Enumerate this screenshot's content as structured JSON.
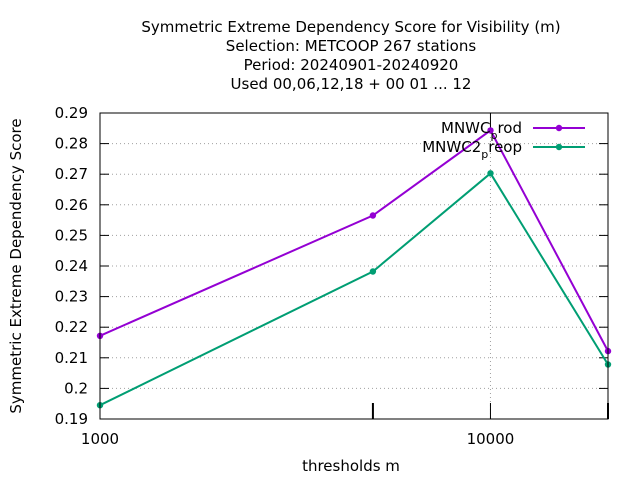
{
  "chart_data": {
    "type": "line",
    "title_lines": [
      "Symmetric Extreme Dependency Score  for Visibility (m)",
      "Selection: METCOOP    267 stations",
      "Period: 20240901-20240920",
      "Used  00,06,12,18 + 00 01 ... 12"
    ],
    "xlabel": "thresholds m",
    "ylabel": "Symmetric Extreme Dependency Score",
    "x_scale": "log",
    "xlim": [
      1000,
      20000
    ],
    "ylim": [
      0.19,
      0.29
    ],
    "y_ticks": [
      0.19,
      0.2,
      0.21,
      0.22,
      0.23,
      0.24,
      0.25,
      0.26,
      0.27,
      0.28,
      0.29
    ],
    "y_tick_labels": [
      "0.19",
      "0.2",
      "0.21",
      "0.22",
      "0.23",
      "0.24",
      "0.25",
      "0.26",
      "0.27",
      "0.28",
      "0.29"
    ],
    "x_major_ticks": [
      1000,
      10000
    ],
    "x_major_tick_labels": [
      "1000",
      "10000"
    ],
    "x_minor_ticks": [
      5000,
      20000
    ],
    "x": [
      1000,
      5000,
      10000,
      20000
    ],
    "grid": true,
    "legend_placement": "top-right",
    "series": [
      {
        "name": "MNWC_prod",
        "legend_main": "MNWC",
        "legend_sub": "p",
        "legend_tail": "rod",
        "color": "#9400d3",
        "values": [
          0.2172,
          0.2565,
          0.2843,
          0.2122
        ]
      },
      {
        "name": "MNWC2_preop",
        "legend_main": "MNWC2",
        "legend_sub": "p",
        "legend_tail": "reop",
        "color": "#009e73",
        "values": [
          0.1945,
          0.2382,
          0.2703,
          0.2078
        ]
      }
    ]
  }
}
